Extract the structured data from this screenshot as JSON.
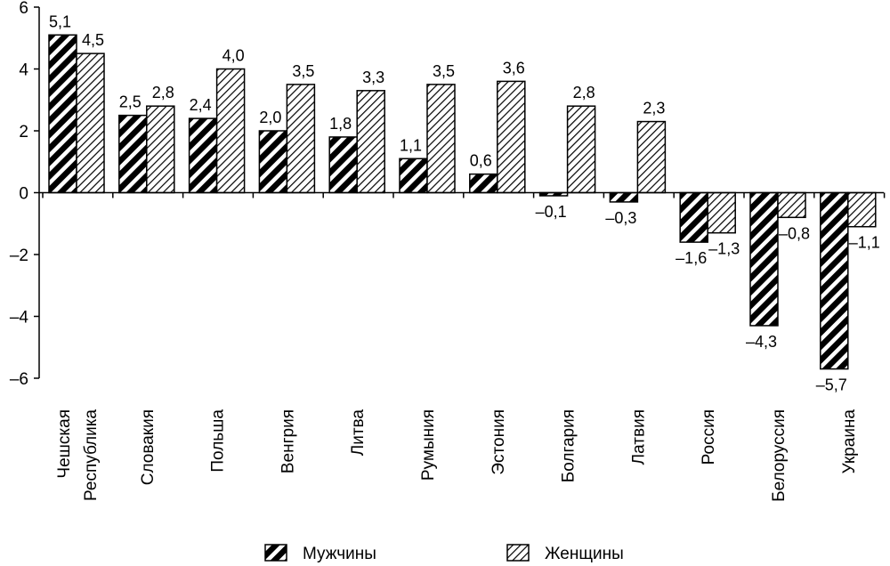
{
  "chart_data": {
    "type": "bar",
    "title": "",
    "xlabel": "",
    "ylabel": "",
    "ylim": [
      -6,
      6
    ],
    "yticks": [
      6,
      4,
      2,
      0,
      -2,
      -4,
      -6
    ],
    "ytick_labels": [
      "6",
      "4",
      "2",
      "0",
      "–2",
      "–4",
      "–6"
    ],
    "grid": false,
    "legend_position": "bottom",
    "categories": [
      "Чешская Республика",
      "Словакия",
      "Польша",
      "Венгрия",
      "Литва",
      "Румыния",
      "Эстония",
      "Болгария",
      "Латвия",
      "Россия",
      "Белоруссия",
      "Украина"
    ],
    "category_label_lines": [
      [
        "Чешская",
        "Республика"
      ],
      [
        "Словакия"
      ],
      [
        "Польша"
      ],
      [
        "Венгрия"
      ],
      [
        "Литва"
      ],
      [
        "Румыния"
      ],
      [
        "Эстония"
      ],
      [
        "Болгария"
      ],
      [
        "Латвия"
      ],
      [
        "Россия"
      ],
      [
        "Белоруссия"
      ],
      [
        "Украина"
      ]
    ],
    "series": [
      {
        "name": "Мужчины",
        "pattern": "dense-dark-diagonal",
        "values": [
          5.1,
          2.5,
          2.4,
          2.0,
          1.8,
          1.1,
          0.6,
          -0.1,
          -0.3,
          -1.6,
          -4.3,
          -5.7
        ],
        "labels": [
          "5,1",
          "2,5",
          "2,4",
          "2,0",
          "1,8",
          "1,1",
          "0,6",
          "–0,1",
          "–0,3",
          "–1,6",
          "–4,3",
          "–5,7"
        ]
      },
      {
        "name": "Женщины",
        "pattern": "light-diagonal",
        "values": [
          4.5,
          2.8,
          4.0,
          3.5,
          3.3,
          3.5,
          3.6,
          2.8,
          2.3,
          -1.3,
          -0.8,
          -1.1
        ],
        "labels": [
          "4,5",
          "2,8",
          "4,0",
          "3,5",
          "3,3",
          "3,5",
          "3,6",
          "2,8",
          "2,3",
          "–1,3",
          "–0,8",
          "–1,1"
        ]
      }
    ],
    "colors": {
      "stroke": "#000000",
      "background": "#ffffff"
    }
  }
}
